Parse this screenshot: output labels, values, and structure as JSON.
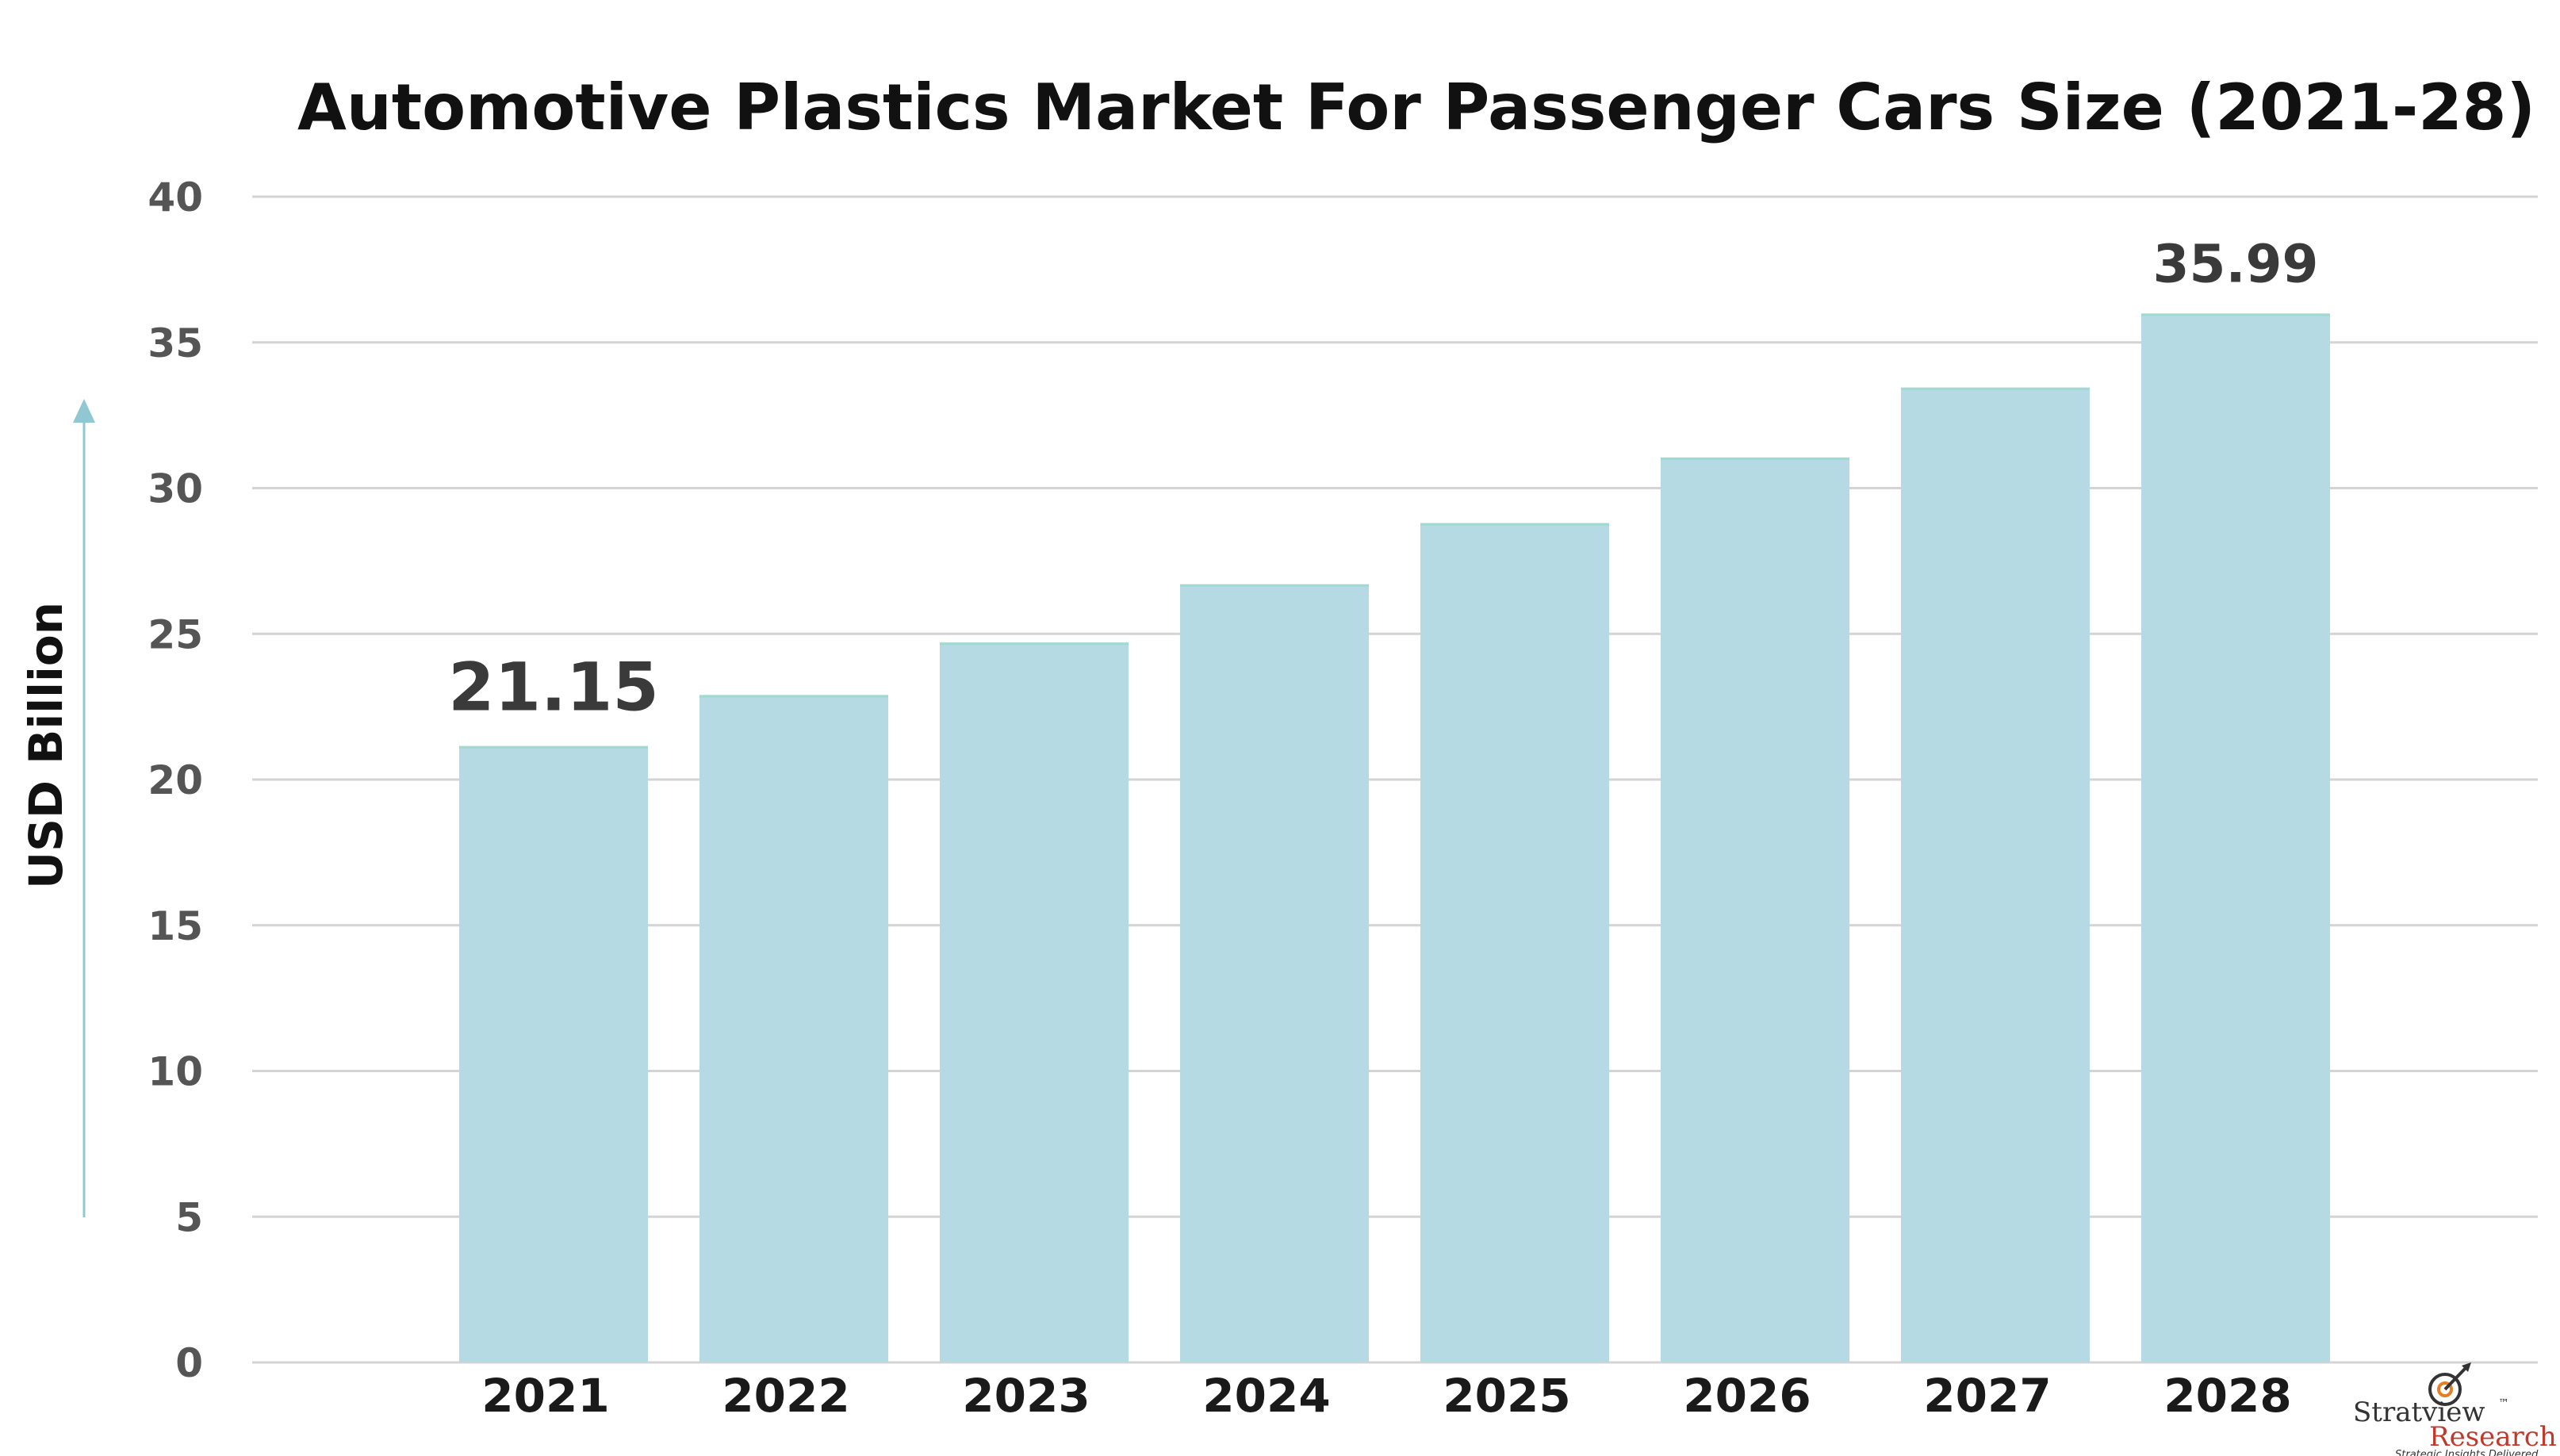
{
  "chart_data": {
    "type": "bar",
    "title": "Automotive Plastics Market For Passenger Cars Size (2021-28)",
    "ylabel": "USD Billion",
    "xlabel": "",
    "categories": [
      "2021",
      "2022",
      "2023",
      "2024",
      "2025",
      "2026",
      "2027",
      "2028"
    ],
    "values": [
      21.15,
      22.9,
      24.7,
      26.7,
      28.8,
      31.05,
      33.45,
      35.99
    ],
    "ylim": [
      0,
      40
    ],
    "yticks": [
      "0",
      "5",
      "10",
      "15",
      "20",
      "25",
      "30",
      "35",
      "40"
    ],
    "data_labels": [
      {
        "category": "2021",
        "text": "21.15"
      },
      {
        "category": "2028",
        "text": "35.99"
      }
    ],
    "grid": true,
    "legend": "none",
    "colors": {
      "bar": "#b5dae3",
      "bar_edge": "#9fd9cf",
      "axis_arrow": "#8fc8d3",
      "grid": "#d4d4d4"
    }
  },
  "logo": {
    "name": "Stratview",
    "sub": "Research",
    "trademark": "™",
    "tagline": "Strategic Insights Delivered",
    "colors": {
      "name": "#333333",
      "sub": "#c0392b",
      "accent": "#e67e22"
    }
  }
}
